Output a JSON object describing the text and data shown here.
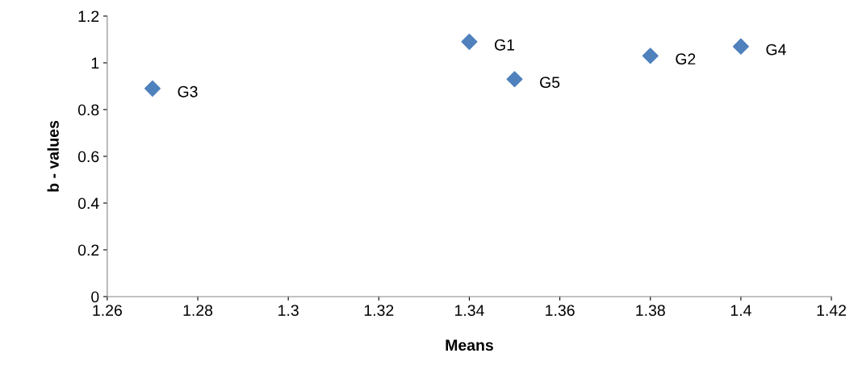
{
  "chart_data": {
    "type": "scatter",
    "xlabel": "Means",
    "ylabel": "b - values",
    "x": [
      1.27,
      1.34,
      1.35,
      1.38,
      1.4
    ],
    "series": [
      {
        "color": "#4f81bd",
        "values": [
          0.89,
          1.09,
          0.93,
          1.03,
          1.07
        ]
      }
    ],
    "annotations": [
      {
        "text": "G3",
        "x": 1.27,
        "y": 0.89
      },
      {
        "text": "G1",
        "x": 1.34,
        "y": 1.09
      },
      {
        "text": "G5",
        "x": 1.35,
        "y": 0.93
      },
      {
        "text": "G2",
        "x": 1.38,
        "y": 1.03
      },
      {
        "text": "G4",
        "x": 1.4,
        "y": 1.07
      }
    ],
    "xlim": [
      1.26,
      1.42
    ],
    "xticks": [
      1.26,
      1.28,
      1.3,
      1.32,
      1.34,
      1.36,
      1.38,
      1.4,
      1.42
    ],
    "ylim": [
      0,
      1.2
    ],
    "yticks": [
      0,
      0.2,
      0.4,
      0.6,
      0.8,
      1,
      1.2
    ],
    "marker": "diamond",
    "grid": false,
    "legend": false
  }
}
